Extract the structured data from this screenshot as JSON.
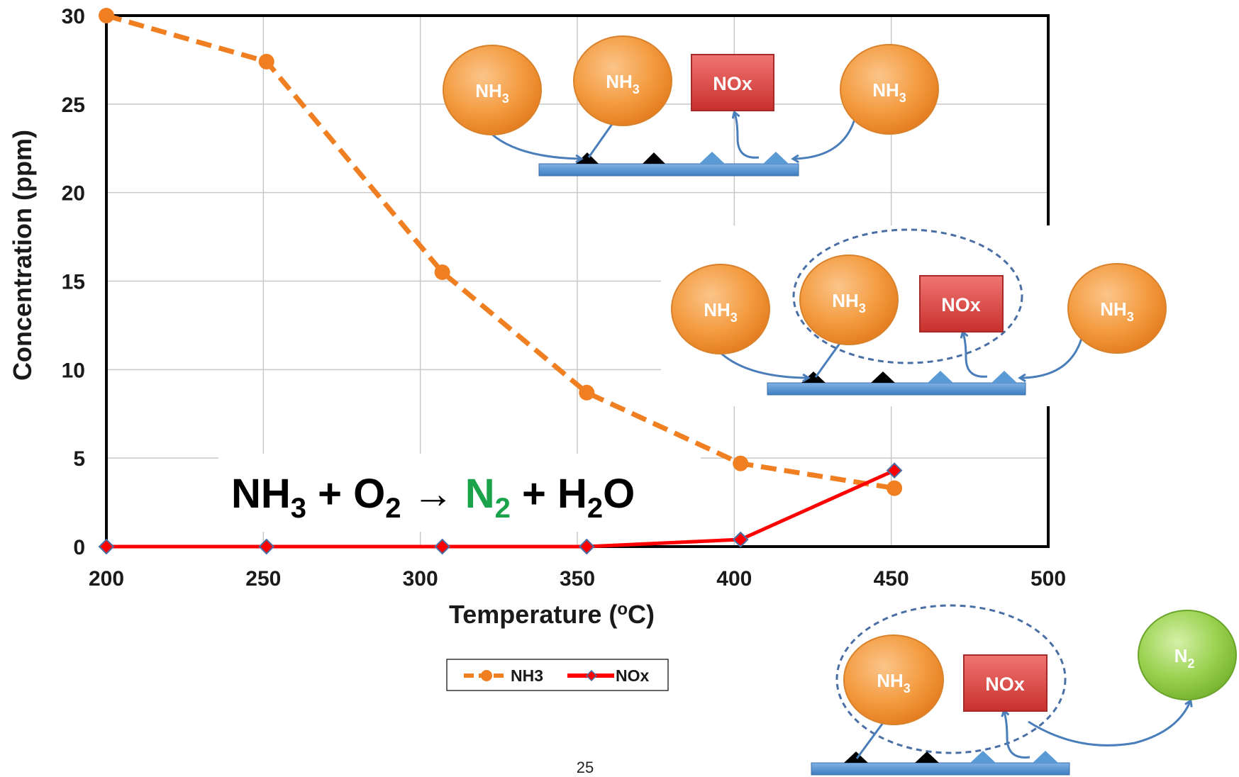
{
  "chart_data": {
    "type": "line",
    "xlabel": "Temperature (oC)",
    "xlabel_main": "Temperature (",
    "xlabel_sup": "o",
    "xlabel_tail": "C)",
    "ylabel": "Concentration (ppm)",
    "xlim": [
      200,
      500
    ],
    "ylim": [
      0,
      30
    ],
    "x_ticks": [
      "200",
      "250",
      "300",
      "350",
      "400",
      "450",
      "500"
    ],
    "y_ticks": [
      "0",
      "5",
      "10",
      "15",
      "20",
      "25",
      "30"
    ],
    "grid": true,
    "legend_position": "bottom-center",
    "series": [
      {
        "name": "NH3",
        "color": "#f07f22",
        "style": "dashed",
        "marker": "circle",
        "points": [
          [
            200,
            30.0
          ],
          [
            251,
            27.4
          ],
          [
            307,
            15.5
          ],
          [
            353,
            8.7
          ],
          [
            402,
            4.7
          ],
          [
            451,
            3.3
          ]
        ]
      },
      {
        "name": "NOx",
        "color": "#ff0000",
        "style": "solid",
        "marker": "diamond",
        "points": [
          [
            200,
            0.0
          ],
          [
            251,
            0.0
          ],
          [
            307,
            0.0
          ],
          [
            353,
            0.0
          ],
          [
            402,
            0.4
          ],
          [
            451,
            4.3
          ]
        ]
      }
    ]
  },
  "equation": {
    "nh": "NH",
    "sub3": "3",
    "plus_o": " + O",
    "sub2a": "2",
    "arrow": " → ",
    "n": "N",
    "sub2b": "2",
    "plus_h": " + H",
    "sub2c": "2",
    "o": "O",
    "product_color": "#1aa34a"
  },
  "diagrams": {
    "nh_base": "NH",
    "nh_sub": "3",
    "nox": "NOx",
    "n_base": "N",
    "n_sub": "2",
    "colors": {
      "bubble": "#f5a04a",
      "nox_box": "#d9534f",
      "n2_bubble": "#8ccf45",
      "surface": "#5b9bd5",
      "arrow": "#4a7ebb"
    }
  },
  "page_number": "25"
}
